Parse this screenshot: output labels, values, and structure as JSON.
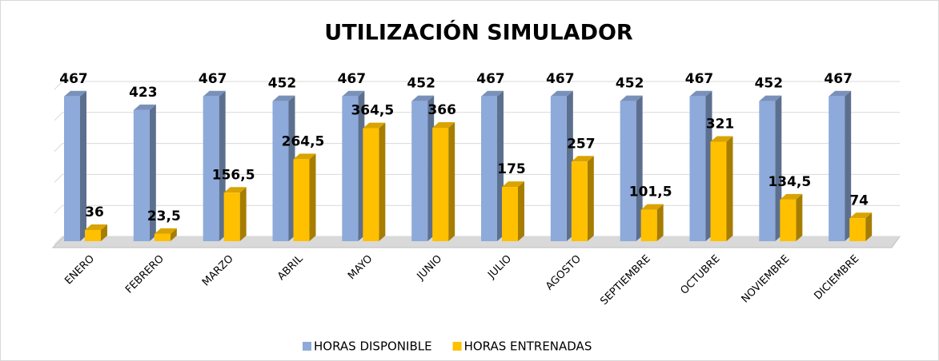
{
  "chart_data": {
    "type": "bar3d",
    "title": "UTILIZACIÓN SIMULADOR",
    "categories": [
      "ENERO",
      "FEBRERO",
      "MARZO",
      "ABRIL",
      "MAYO",
      "JUNIO",
      "JULIO",
      "AGOSTO",
      "SEPTIEMBRE",
      "OCTUBRE",
      "NOVIEMBRE",
      "DICIEMBRE"
    ],
    "series": [
      {
        "name": "HORAS DISPONIBLE",
        "color": "#8eaadb",
        "values": [
          467,
          423,
          467,
          452,
          467,
          452,
          467,
          467,
          452,
          467,
          452,
          467
        ]
      },
      {
        "name": "HORAS  ENTRENADAS",
        "color": "#ffc000",
        "values": [
          36,
          23.5,
          156.5,
          264.5,
          364.5,
          366,
          175,
          257,
          101.5,
          321,
          134.5,
          74
        ],
        "value_labels": [
          "36",
          "23,5",
          "156,5",
          "264,5",
          "364,5",
          "366",
          "175",
          "257",
          "101,5",
          "321",
          "134,5",
          "74"
        ]
      }
    ],
    "ylim": [
      0,
      500
    ],
    "yticks": [
      0,
      100,
      200,
      300,
      400,
      500
    ],
    "grid": true,
    "legend": "bottom"
  }
}
